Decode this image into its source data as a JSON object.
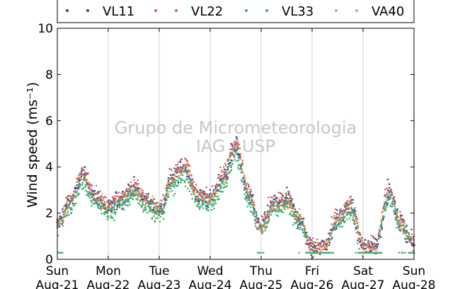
{
  "chart_data": {
    "type": "scatter",
    "title": "",
    "ylabel": "Wind speed (ms⁻¹)",
    "ylim": [
      0,
      10
    ],
    "yticks": [
      0,
      2,
      4,
      6,
      8,
      10
    ],
    "x_range_days": [
      "2016-08-21",
      "2016-08-28"
    ],
    "xtick_labels": [
      {
        "day": "Sun",
        "date": "Aug-21"
      },
      {
        "day": "Mon",
        "date": "Aug-22"
      },
      {
        "day": "Tue",
        "date": "Aug-23"
      },
      {
        "day": "Wed",
        "date": "Aug-24"
      },
      {
        "day": "Thu",
        "date": "Aug-25"
      },
      {
        "day": "Fri",
        "date": "Aug-26"
      },
      {
        "day": "Sat",
        "date": "Aug-27"
      },
      {
        "day": "Sun",
        "date": "Aug-28"
      }
    ],
    "grid": "vertical",
    "legend_position": "top",
    "hourly_profile": {
      "hours_from_start": [
        0,
        6,
        12,
        18,
        24,
        30,
        36,
        42,
        48,
        54,
        60,
        66,
        72,
        78,
        84,
        90,
        96,
        102,
        108,
        114,
        120,
        126,
        132,
        138,
        144,
        150,
        156,
        162,
        168
      ],
      "wind_speed": [
        1.5,
        2.5,
        3.6,
        2.7,
        2.2,
        2.6,
        3.1,
        2.5,
        2.1,
        3.5,
        4.0,
        2.7,
        2.6,
        3.5,
        4.9,
        2.8,
        1.4,
        2.4,
        2.6,
        1.7,
        0.5,
        0.6,
        1.7,
        2.3,
        0.6,
        0.6,
        2.9,
        1.5,
        0.7
      ]
    },
    "series": [
      {
        "name": "VL11",
        "color": "#1f4e8c"
      },
      {
        "name": "VL22",
        "color": "#d06060"
      },
      {
        "name": "VL33",
        "color": "#3cb371"
      },
      {
        "name": "VA40",
        "color": "#e8a060"
      }
    ],
    "vl33_floor_value": 0.28,
    "watermark_lines": [
      "Grupo de Micrometeorologia",
      "IAG / USP"
    ]
  }
}
